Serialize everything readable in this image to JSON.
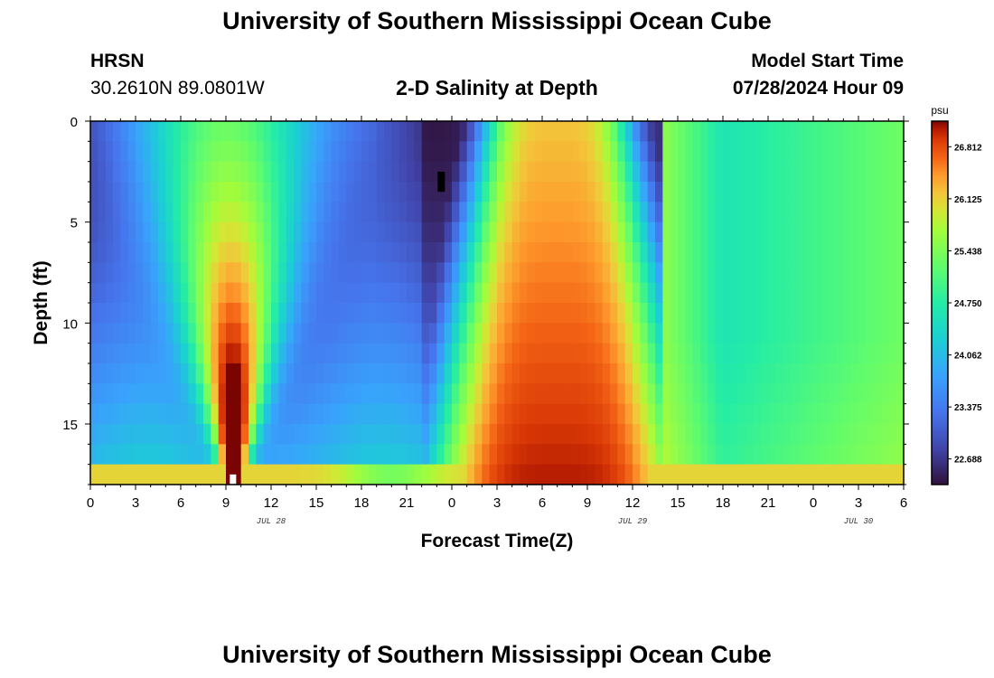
{
  "header": {
    "title": "University of Southern Mississippi Ocean Cube",
    "station": "HRSN",
    "coords": "30.2610N  89.0801W",
    "plot_title": "2-D Salinity at Depth",
    "model_label": "Model Start Time",
    "model_time": "07/28/2024 Hour 09",
    "footer_title": "University of Southern Mississippi Ocean Cube"
  },
  "chart_data": {
    "type": "heatmap",
    "title": "2-D Salinity at Depth",
    "xlabel": "Forecast Time(Z)",
    "ylabel": "Depth (ft)",
    "x_tick_labels": [
      "0",
      "3",
      "6",
      "9",
      "12",
      "15",
      "18",
      "21",
      "0",
      "3",
      "6",
      "9",
      "12",
      "15",
      "18",
      "21",
      "0",
      "3",
      "6"
    ],
    "x_range_hours": [
      0,
      54
    ],
    "date_labels": [
      {
        "label": "JUL 28",
        "hour": 12
      },
      {
        "label": "JUL 29",
        "hour": 36
      },
      {
        "label": "JUL 30",
        "hour": 51
      }
    ],
    "y_tick_labels": [
      "0",
      "5",
      "10",
      "15"
    ],
    "y_range_ft": [
      0,
      18
    ],
    "colorbar": {
      "unit": "psu",
      "min": 22.35,
      "max": 27.15,
      "tick_labels": [
        "26.812",
        "26.125",
        "25.438",
        "24.750",
        "24.062",
        "23.375",
        "22.688"
      ]
    },
    "grid": false
  }
}
